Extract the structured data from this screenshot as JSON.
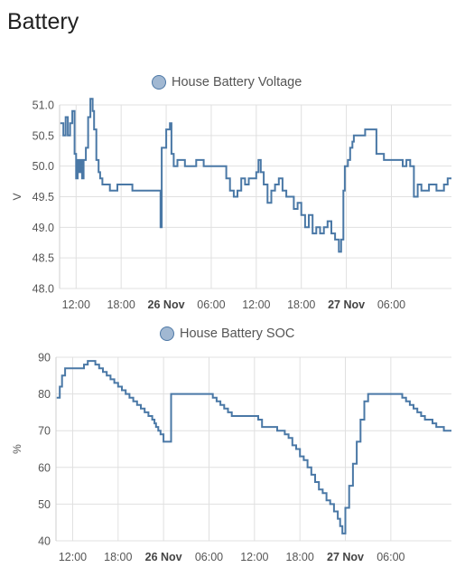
{
  "card": {
    "title": "Battery"
  },
  "colors": {
    "series": "#4a78a6",
    "grid": "#e0e0e0",
    "legend_fill": "#a1b8d2"
  },
  "chart_data": [
    {
      "type": "line",
      "title": "House Battery Voltage",
      "ylabel": "V",
      "ylim": [
        48.0,
        51.0
      ],
      "yticks": [
        "51.0",
        "50.5",
        "50.0",
        "49.5",
        "49.0",
        "48.5",
        "48.0"
      ],
      "ytick_values": [
        51.0,
        50.5,
        50.0,
        49.5,
        49.0,
        48.5,
        48.0
      ],
      "xlim": [
        9.8,
        62.0
      ],
      "xticks": [
        {
          "label": "12:00",
          "hours": 12,
          "bold": false
        },
        {
          "label": "18:00",
          "hours": 18,
          "bold": false
        },
        {
          "label": "26 Nov",
          "hours": 24,
          "bold": true
        },
        {
          "label": "06:00",
          "hours": 30,
          "bold": false
        },
        {
          "label": "12:00",
          "hours": 36,
          "bold": false
        },
        {
          "label": "18:00",
          "hours": 42,
          "bold": false
        },
        {
          "label": "27 Nov",
          "hours": 48,
          "bold": true
        },
        {
          "label": "06:00",
          "hours": 54,
          "bold": false
        }
      ],
      "grid": true,
      "series": [
        {
          "name": "House Battery Voltage",
          "x": [
            9.9,
            10.3,
            10.6,
            10.9,
            11.2,
            11.5,
            11.8,
            12.0,
            12.2,
            12.4,
            12.6,
            12.8,
            13.0,
            13.3,
            13.6,
            13.9,
            14.2,
            14.4,
            14.7,
            15.0,
            15.2,
            15.5,
            15.8,
            16.5,
            17.5,
            18.5,
            19.5,
            20.5,
            21.5,
            23.2,
            23.25,
            23.4,
            24.0,
            24.5,
            24.7,
            25.0,
            25.5,
            26.5,
            28.0,
            29.0,
            30.5,
            31.5,
            32.0,
            32.5,
            33.0,
            33.5,
            34.0,
            34.5,
            35.0,
            35.5,
            36.0,
            36.3,
            36.6,
            37.0,
            37.5,
            38.0,
            38.5,
            39.0,
            39.5,
            40.0,
            40.5,
            41.0,
            41.5,
            42.0,
            42.5,
            43.0,
            43.5,
            44.0,
            44.5,
            45.0,
            45.5,
            46.0,
            46.5,
            47.0,
            47.3,
            47.6,
            47.8,
            48.2,
            48.5,
            48.8,
            49.0,
            49.5,
            50.0,
            50.5,
            51.0,
            51.5,
            52.0,
            53.0,
            54.0,
            55.0,
            55.5,
            56.0,
            56.5,
            57.0,
            57.5,
            58.0,
            58.5,
            59.0,
            59.5,
            60.0,
            60.5,
            61.0,
            61.5,
            62.0
          ],
          "y": [
            50.7,
            50.5,
            50.8,
            50.5,
            50.7,
            50.9,
            50.2,
            49.8,
            50.1,
            49.9,
            50.1,
            49.8,
            50.1,
            50.3,
            50.8,
            51.1,
            50.9,
            50.6,
            50.1,
            49.9,
            49.8,
            49.7,
            49.7,
            49.6,
            49.7,
            49.7,
            49.6,
            49.6,
            49.6,
            49.6,
            49.0,
            50.3,
            50.6,
            50.7,
            50.2,
            50.0,
            50.1,
            50.0,
            50.1,
            50.0,
            50.0,
            50.0,
            49.8,
            49.6,
            49.5,
            49.6,
            49.8,
            49.7,
            49.8,
            49.8,
            49.9,
            50.1,
            49.9,
            49.7,
            49.4,
            49.6,
            49.7,
            49.8,
            49.6,
            49.5,
            49.5,
            49.3,
            49.4,
            49.2,
            49.0,
            49.2,
            48.9,
            49.0,
            48.9,
            49.0,
            49.1,
            48.9,
            48.8,
            48.6,
            48.8,
            49.6,
            50.0,
            50.1,
            50.3,
            50.4,
            50.5,
            50.5,
            50.5,
            50.6,
            50.6,
            50.6,
            50.2,
            50.1,
            50.1,
            50.1,
            50.0,
            50.1,
            50.0,
            49.5,
            49.7,
            49.6,
            49.6,
            49.7,
            49.7,
            49.6,
            49.6,
            49.7,
            49.8,
            49.8
          ]
        }
      ]
    },
    {
      "type": "line",
      "title": "House Battery SOC",
      "ylabel": "%",
      "ylim": [
        40,
        90
      ],
      "yticks": [
        "90",
        "80",
        "70",
        "60",
        "50",
        "40"
      ],
      "ytick_values": [
        90,
        80,
        70,
        60,
        50,
        40
      ],
      "xlim": [
        9.8,
        62.0
      ],
      "xticks": [
        {
          "label": "12:00",
          "hours": 12,
          "bold": false
        },
        {
          "label": "18:00",
          "hours": 18,
          "bold": false
        },
        {
          "label": "26 Nov",
          "hours": 24,
          "bold": true
        },
        {
          "label": "06:00",
          "hours": 30,
          "bold": false
        },
        {
          "label": "12:00",
          "hours": 36,
          "bold": false
        },
        {
          "label": "18:00",
          "hours": 42,
          "bold": false
        },
        {
          "label": "27 Nov",
          "hours": 48,
          "bold": true
        },
        {
          "label": "06:00",
          "hours": 54,
          "bold": false
        }
      ],
      "grid": true,
      "series": [
        {
          "name": "House Battery SOC",
          "x": [
            9.9,
            10.3,
            10.6,
            11.0,
            11.3,
            11.6,
            12.0,
            12.5,
            13.0,
            13.5,
            14.0,
            14.5,
            15.0,
            15.5,
            16.0,
            16.5,
            17.0,
            17.5,
            18.0,
            18.5,
            19.0,
            19.5,
            20.0,
            20.5,
            21.0,
            21.5,
            22.0,
            22.5,
            22.8,
            23.0,
            23.3,
            23.6,
            24.0,
            25.0,
            26.0,
            27.0,
            28.0,
            29.0,
            30.0,
            30.5,
            31.0,
            31.5,
            32.0,
            32.5,
            33.0,
            34.0,
            35.0,
            36.0,
            36.5,
            37.0,
            38.0,
            39.0,
            40.0,
            40.5,
            41.0,
            41.5,
            42.0,
            42.5,
            43.0,
            43.5,
            44.0,
            44.5,
            45.0,
            45.5,
            46.0,
            46.5,
            47.0,
            47.3,
            47.6,
            48.0,
            48.5,
            49.0,
            49.5,
            50.0,
            50.5,
            51.0,
            51.5,
            52.0,
            53.0,
            54.0,
            55.0,
            55.5,
            56.0,
            56.5,
            57.0,
            57.5,
            58.0,
            58.5,
            59.0,
            59.5,
            60.0,
            60.5,
            61.0,
            61.5,
            62.0
          ],
          "y": [
            79,
            82,
            85,
            87,
            87,
            87,
            87,
            87,
            87,
            88,
            89,
            89,
            88,
            87,
            86,
            85,
            84,
            83,
            82,
            81,
            80,
            79,
            78,
            77,
            76,
            75,
            74,
            73,
            72,
            71,
            70,
            69,
            67,
            80,
            80,
            80,
            80,
            80,
            80,
            79,
            78,
            77,
            76,
            75,
            74,
            74,
            74,
            74,
            73,
            71,
            71,
            70,
            69,
            68,
            66,
            65,
            63,
            62,
            60,
            58,
            56,
            54,
            53,
            51,
            50,
            48,
            46,
            44,
            42,
            49,
            55,
            61,
            67,
            73,
            78,
            80,
            80,
            80,
            80,
            80,
            80,
            79,
            78,
            77,
            76,
            75,
            74,
            73,
            73,
            72,
            71,
            71,
            70,
            70,
            70
          ]
        }
      ]
    }
  ]
}
